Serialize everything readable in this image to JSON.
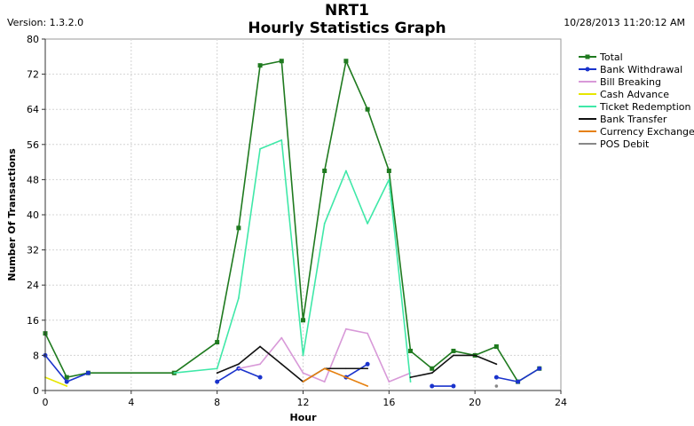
{
  "header": {
    "version": "Version: 1.3.2.0",
    "timestamp": "10/28/2013 11:20:12 AM",
    "title_line1": "NRT1",
    "title_line2": "Hourly Statistics Graph"
  },
  "chart_data": {
    "type": "line",
    "title": "NRT1 Hourly Statistics Graph",
    "xlabel": "Hour",
    "ylabel": "Number Of Transactions",
    "xlim": [
      0,
      24
    ],
    "ylim": [
      0,
      80
    ],
    "xticks": [
      0,
      4,
      8,
      12,
      16,
      20,
      24
    ],
    "yticks": [
      0,
      8,
      16,
      24,
      32,
      40,
      48,
      56,
      64,
      72,
      80
    ],
    "grid": true,
    "legend_position": "right",
    "series": [
      {
        "name": "Total",
        "color": "#1f7a1f",
        "marker": "square",
        "points": [
          [
            0,
            13
          ],
          [
            1,
            3
          ],
          [
            2,
            4
          ],
          [
            6,
            4
          ],
          [
            8,
            11
          ],
          [
            9,
            37
          ],
          [
            10,
            74
          ],
          [
            11,
            75
          ],
          [
            12,
            16
          ],
          [
            13,
            50
          ],
          [
            14,
            75
          ],
          [
            15,
            64
          ],
          [
            16,
            50
          ],
          [
            17,
            9
          ],
          [
            18,
            5
          ],
          [
            19,
            9
          ],
          [
            20,
            8
          ],
          [
            21,
            10
          ],
          [
            22,
            2
          ],
          [
            23,
            5
          ]
        ]
      },
      {
        "name": "Bank Withdrawal",
        "color": "#1a33cc",
        "marker": "circle",
        "segments": [
          [
            [
              0,
              8
            ],
            [
              1,
              2
            ],
            [
              2,
              4
            ]
          ],
          [
            [
              8,
              2
            ],
            [
              9,
              5
            ],
            [
              10,
              3
            ]
          ],
          [
            [
              14,
              3
            ],
            [
              15,
              6
            ]
          ],
          [
            [
              18,
              1
            ],
            [
              19,
              1
            ]
          ],
          [
            [
              21,
              3
            ],
            [
              22,
              2
            ],
            [
              23,
              5
            ]
          ]
        ]
      },
      {
        "name": "Bill Breaking",
        "color": "#d899d8",
        "marker": "none",
        "points": [
          [
            9,
            5
          ],
          [
            10,
            6
          ],
          [
            11,
            12
          ],
          [
            12,
            4
          ],
          [
            13,
            2
          ],
          [
            14,
            14
          ],
          [
            15,
            13
          ],
          [
            16,
            2
          ],
          [
            17,
            4
          ]
        ]
      },
      {
        "name": "Cash Advance",
        "color": "#e6e600",
        "marker": "none",
        "points": [
          [
            0,
            3
          ],
          [
            1,
            1
          ]
        ]
      },
      {
        "name": "Ticket Redemption",
        "color": "#3fe8a8",
        "marker": "none",
        "points": [
          [
            6,
            4
          ],
          [
            8,
            5
          ],
          [
            9,
            21
          ],
          [
            10,
            55
          ],
          [
            11,
            57
          ],
          [
            12,
            8
          ],
          [
            13,
            38
          ],
          [
            14,
            50
          ],
          [
            15,
            38
          ],
          [
            16,
            48
          ],
          [
            17,
            2
          ]
        ]
      },
      {
        "name": "Bank Transfer",
        "color": "#111111",
        "marker": "none",
        "segments": [
          [
            [
              8,
              4
            ],
            [
              9,
              6
            ],
            [
              10,
              10
            ],
            [
              11,
              6
            ],
            [
              12,
              2
            ],
            [
              13,
              5
            ],
            [
              14,
              5
            ],
            [
              15,
              5
            ]
          ],
          [
            [
              17,
              3
            ],
            [
              18,
              4
            ],
            [
              19,
              8
            ],
            [
              20,
              8
            ],
            [
              21,
              6
            ]
          ]
        ]
      },
      {
        "name": "Currency Exchange",
        "color": "#e6800f",
        "marker": "none",
        "points": [
          [
            12,
            2
          ],
          [
            13,
            5
          ],
          [
            14,
            3
          ],
          [
            15,
            1
          ]
        ]
      },
      {
        "name": "POS Debit",
        "color": "#888888",
        "marker": "dot",
        "points": [
          [
            21,
            1
          ]
        ]
      }
    ]
  }
}
